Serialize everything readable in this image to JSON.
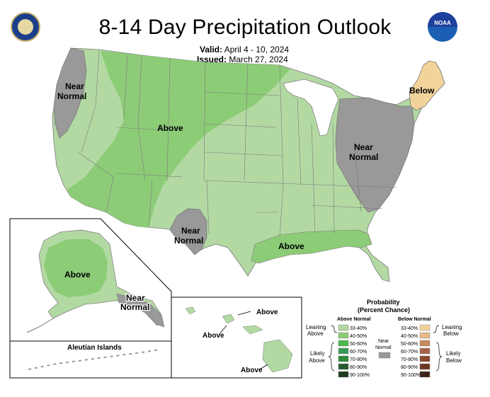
{
  "title": "8-14 Day Precipitation Outlook",
  "valid_label": "Valid:",
  "valid_value": "April 4 - 10, 2024",
  "issued_label": "Issued:",
  "issued_value": "March 27, 2024",
  "logos": {
    "left": "department-of-commerce-seal",
    "right": "noaa-logo",
    "right_text": "NOAA"
  },
  "regions": {
    "conus": [
      {
        "category": "Near Normal",
        "label_lines": [
          "Near",
          "Normal"
        ],
        "area": "Pacific Northwest coast"
      },
      {
        "category": "Above",
        "label_lines": [
          "Above"
        ],
        "area": "Northern Rockies and Plains"
      },
      {
        "category": "Below",
        "label_lines": [
          "Below"
        ],
        "area": "Northern New England"
      },
      {
        "category": "Near Normal",
        "label_lines": [
          "Near",
          "Normal"
        ],
        "area": "Eastern Seaboard"
      },
      {
        "category": "Near Normal",
        "label_lines": [
          "Near",
          "Normal"
        ],
        "area": "West Texas"
      },
      {
        "category": "Above",
        "label_lines": [
          "Above"
        ],
        "area": "Gulf Coast"
      }
    ],
    "alaska": [
      {
        "category": "Above",
        "label_lines": [
          "Above"
        ]
      },
      {
        "category": "Near Normal",
        "label_lines": [
          "Near",
          "Normal"
        ]
      }
    ],
    "aleutian_label": "Aleutian Islands",
    "hawaii": [
      {
        "category": "Above",
        "label_lines": [
          "Above"
        ]
      },
      {
        "category": "Above",
        "label_lines": [
          "Above"
        ]
      },
      {
        "category": "Above",
        "label_lines": [
          "Above"
        ]
      }
    ]
  },
  "legend": {
    "title_lines": [
      "Probability",
      "(Percent Chance)"
    ],
    "above_header": "Above Normal",
    "below_header": "Below Normal",
    "near_label_lines": [
      "Near",
      "Normal"
    ],
    "leaning_above_lines": [
      "Leaning",
      "Above"
    ],
    "likely_above_lines": [
      "Likely",
      "Above"
    ],
    "leaning_below_lines": [
      "Leaning",
      "Below"
    ],
    "likely_below_lines": [
      "Likely",
      "Below"
    ],
    "above_bins": [
      {
        "range": "33-40%",
        "color": "#b3d9a3"
      },
      {
        "range": "40-50%",
        "color": "#8dcc77"
      },
      {
        "range": "50-60%",
        "color": "#4db84d"
      },
      {
        "range": "60-70%",
        "color": "#3a9a5a"
      },
      {
        "range": "70-80%",
        "color": "#2f8b3a"
      },
      {
        "range": "80-90%",
        "color": "#285a2f"
      },
      {
        "range": "90-100%",
        "color": "#1d3d1d"
      }
    ],
    "below_bins": [
      {
        "range": "33-40%",
        "color": "#f2d39a"
      },
      {
        "range": "40-50%",
        "color": "#e8b886"
      },
      {
        "range": "50-60%",
        "color": "#c98a5c"
      },
      {
        "range": "60-70%",
        "color": "#a7644a"
      },
      {
        "range": "70-80%",
        "color": "#8a4a30"
      },
      {
        "range": "80-90%",
        "color": "#6b3822"
      },
      {
        "range": "90-100%",
        "color": "#3f2416"
      }
    ],
    "near_color": "#999999"
  }
}
